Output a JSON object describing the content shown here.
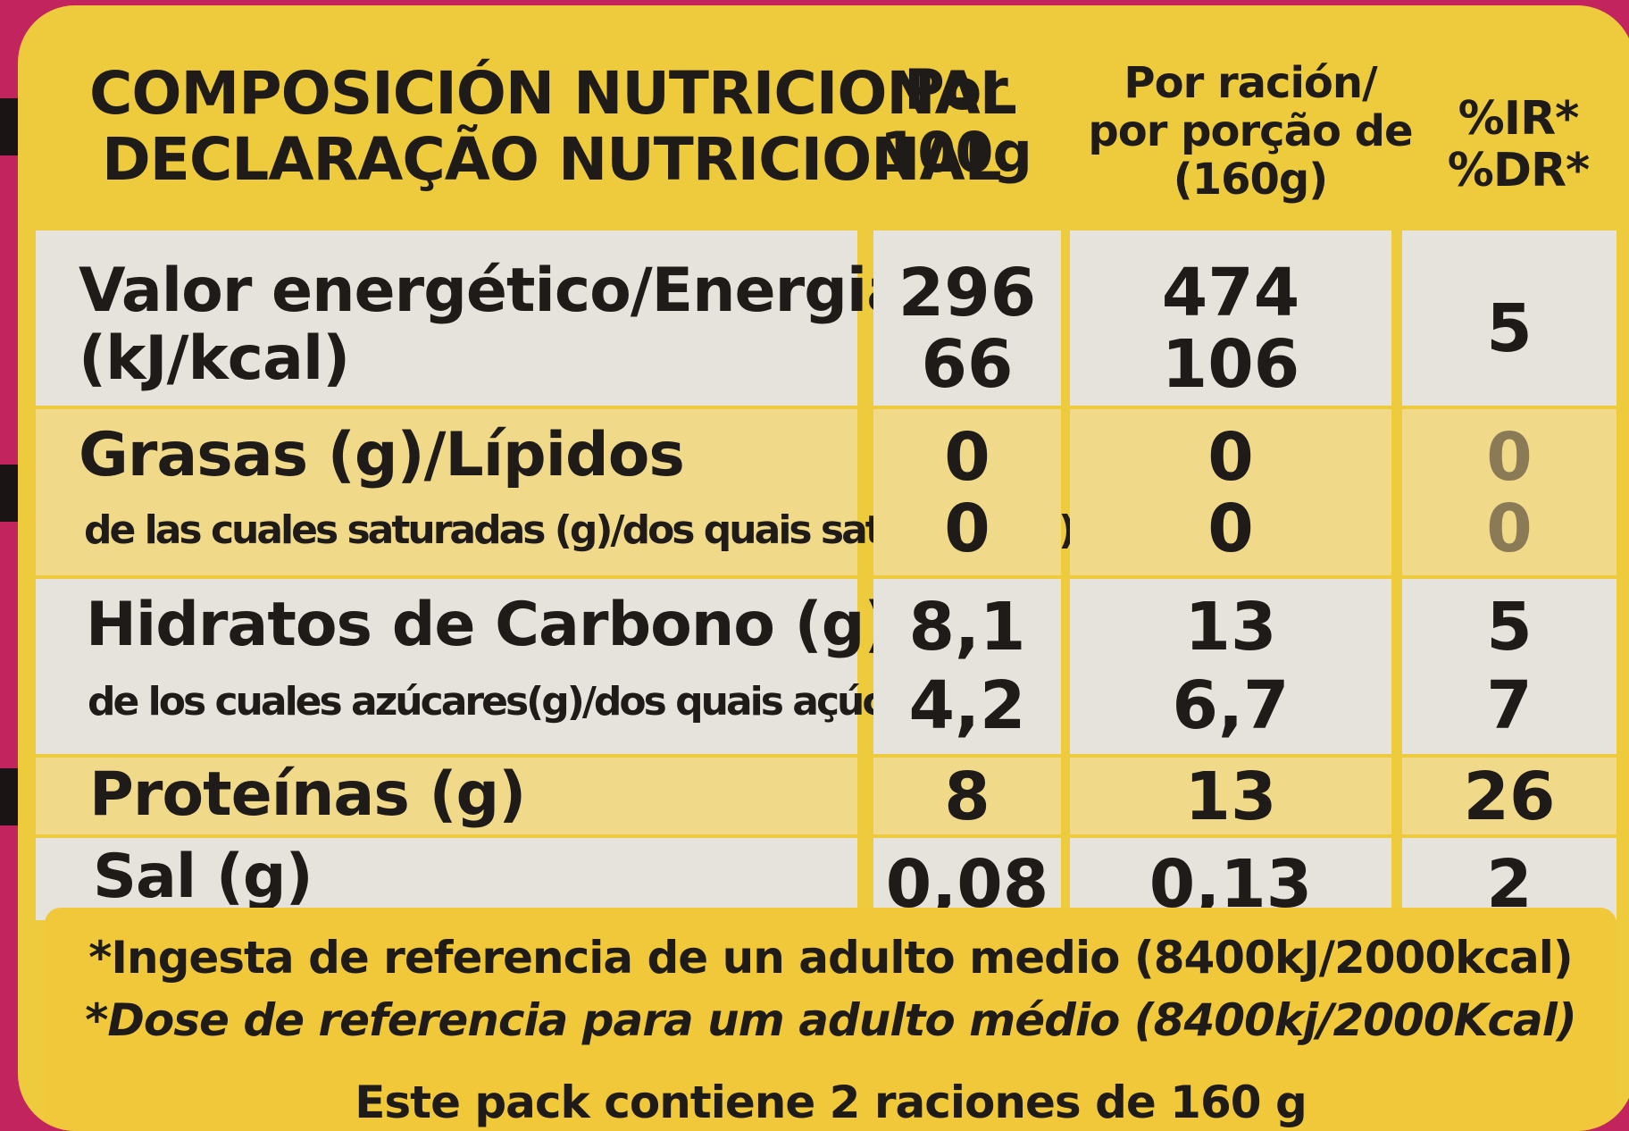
{
  "header": {
    "title_line1": "COMPOSICIÓN NUTRICIONAL",
    "title_line2": "DECLARAÇÃO NUTRICIONAL",
    "per100_line1": "Por",
    "per100_line2": "100g",
    "serving_line1": "Por ración/",
    "serving_line2": "por porção de",
    "serving_line3": "(160g)",
    "ri_line1": "%IR*",
    "ri_line2": "%DR*"
  },
  "rows": {
    "energy": {
      "label1": "Valor energético/Energia",
      "label2": "(kJ/kcal)",
      "per100_kj": "296",
      "per100_kcal": "66",
      "serving_kj": "474",
      "serving_kcal": "106",
      "ri": "5"
    },
    "fat": {
      "label": "Grasas (g)/Lípidos",
      "per100": "0",
      "serving": "0",
      "ri": "0"
    },
    "saturates": {
      "label": "de las cuales saturadas (g)/dos quais saturados(g)",
      "per100": "0",
      "serving": "0",
      "ri": "0"
    },
    "carbs": {
      "label": "Hidratos de Carbono (g)",
      "per100": "8,1",
      "serving": "13",
      "ri": "5"
    },
    "sugars": {
      "label": "de los cuales azúcares(g)/dos quais açúcares(g)",
      "per100": "4,2",
      "serving": "6,7",
      "ri": "7"
    },
    "protein": {
      "label": "Proteínas (g)",
      "per100": "8",
      "serving": "13",
      "ri": "26"
    },
    "salt": {
      "label": "Sal (g)",
      "per100": "0,08",
      "serving": "0,13",
      "ri": "2"
    }
  },
  "footer": {
    "line1": "*Ingesta de referencia de un adulto medio (8400kJ/2000kcal)",
    "line2": "*Dose de referencia para um adulto médio (8400kj/2000Kcal)",
    "line3": "Este pack contiene 2 raciones de 160 g"
  },
  "colors": {
    "label_yellow": "#eecb3c",
    "row_grey": "#e6e3dc",
    "row_yellow": "#f1d98a",
    "background_pink": "#c2245e"
  }
}
